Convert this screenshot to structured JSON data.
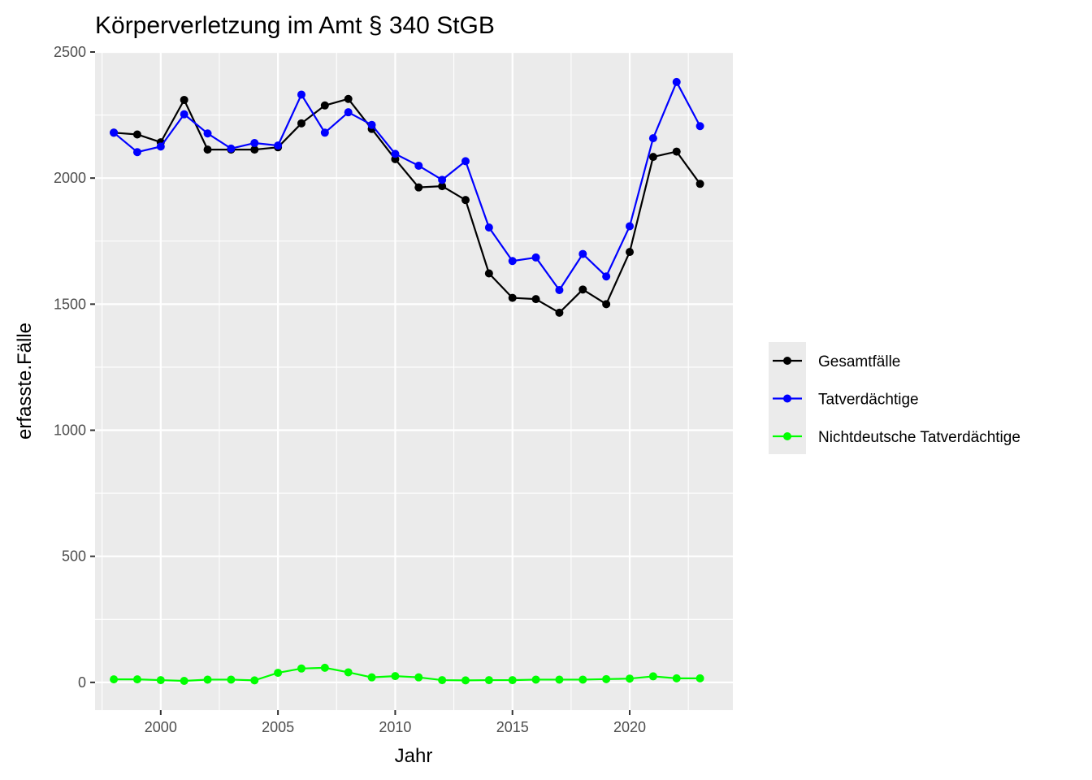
{
  "chart_data": {
    "type": "line",
    "title": "Körperverletzung im Amt § 340 StGB",
    "xlabel": "Jahr",
    "ylabel": "erfasste.Fälle",
    "xlim": [
      1997.2,
      2024.4
    ],
    "ylim": [
      -110,
      2500
    ],
    "x_ticks": [
      2000,
      2005,
      2010,
      2015,
      2020
    ],
    "y_ticks": [
      0,
      500,
      1000,
      1500,
      2000,
      2500
    ],
    "x_tick_labels": [
      "2000",
      "2005",
      "2010",
      "2015",
      "2020"
    ],
    "y_tick_labels": [
      "0",
      "500",
      "1000",
      "1500",
      "2000",
      "2500"
    ],
    "grid": true,
    "legend_position": "right",
    "x": [
      1998,
      1999,
      2000,
      2001,
      2002,
      2003,
      2004,
      2005,
      2006,
      2007,
      2008,
      2009,
      2010,
      2011,
      2012,
      2013,
      2014,
      2015,
      2016,
      2017,
      2018,
      2019,
      2020,
      2021,
      2022,
      2023
    ],
    "series": [
      {
        "name": "Gesamtfälle",
        "color": "#000000",
        "values": [
          2180,
          2173,
          2142,
          2310,
          2113,
          2113,
          2113,
          2122,
          2217,
          2288,
          2314,
          2195,
          2075,
          1963,
          1968,
          1913,
          1622,
          1525,
          1520,
          1466,
          1558,
          1500,
          1707,
          2084,
          2105,
          1977
        ]
      },
      {
        "name": "Tatverdächtige",
        "color": "#0000ff",
        "values": [
          2180,
          2103,
          2125,
          2253,
          2177,
          2117,
          2139,
          2129,
          2331,
          2180,
          2261,
          2211,
          2096,
          2049,
          1993,
          2067,
          1804,
          1671,
          1685,
          1556,
          1699,
          1610,
          1809,
          2158,
          2381,
          2206
        ]
      },
      {
        "name": "Nichtdeutsche Tatverdächtige",
        "color": "#00ff00",
        "values": [
          12,
          12,
          9,
          6,
          11,
          11,
          8,
          38,
          55,
          58,
          40,
          20,
          25,
          20,
          9,
          8,
          9,
          9,
          11,
          11,
          11,
          13,
          15,
          24,
          16,
          16
        ]
      }
    ]
  }
}
